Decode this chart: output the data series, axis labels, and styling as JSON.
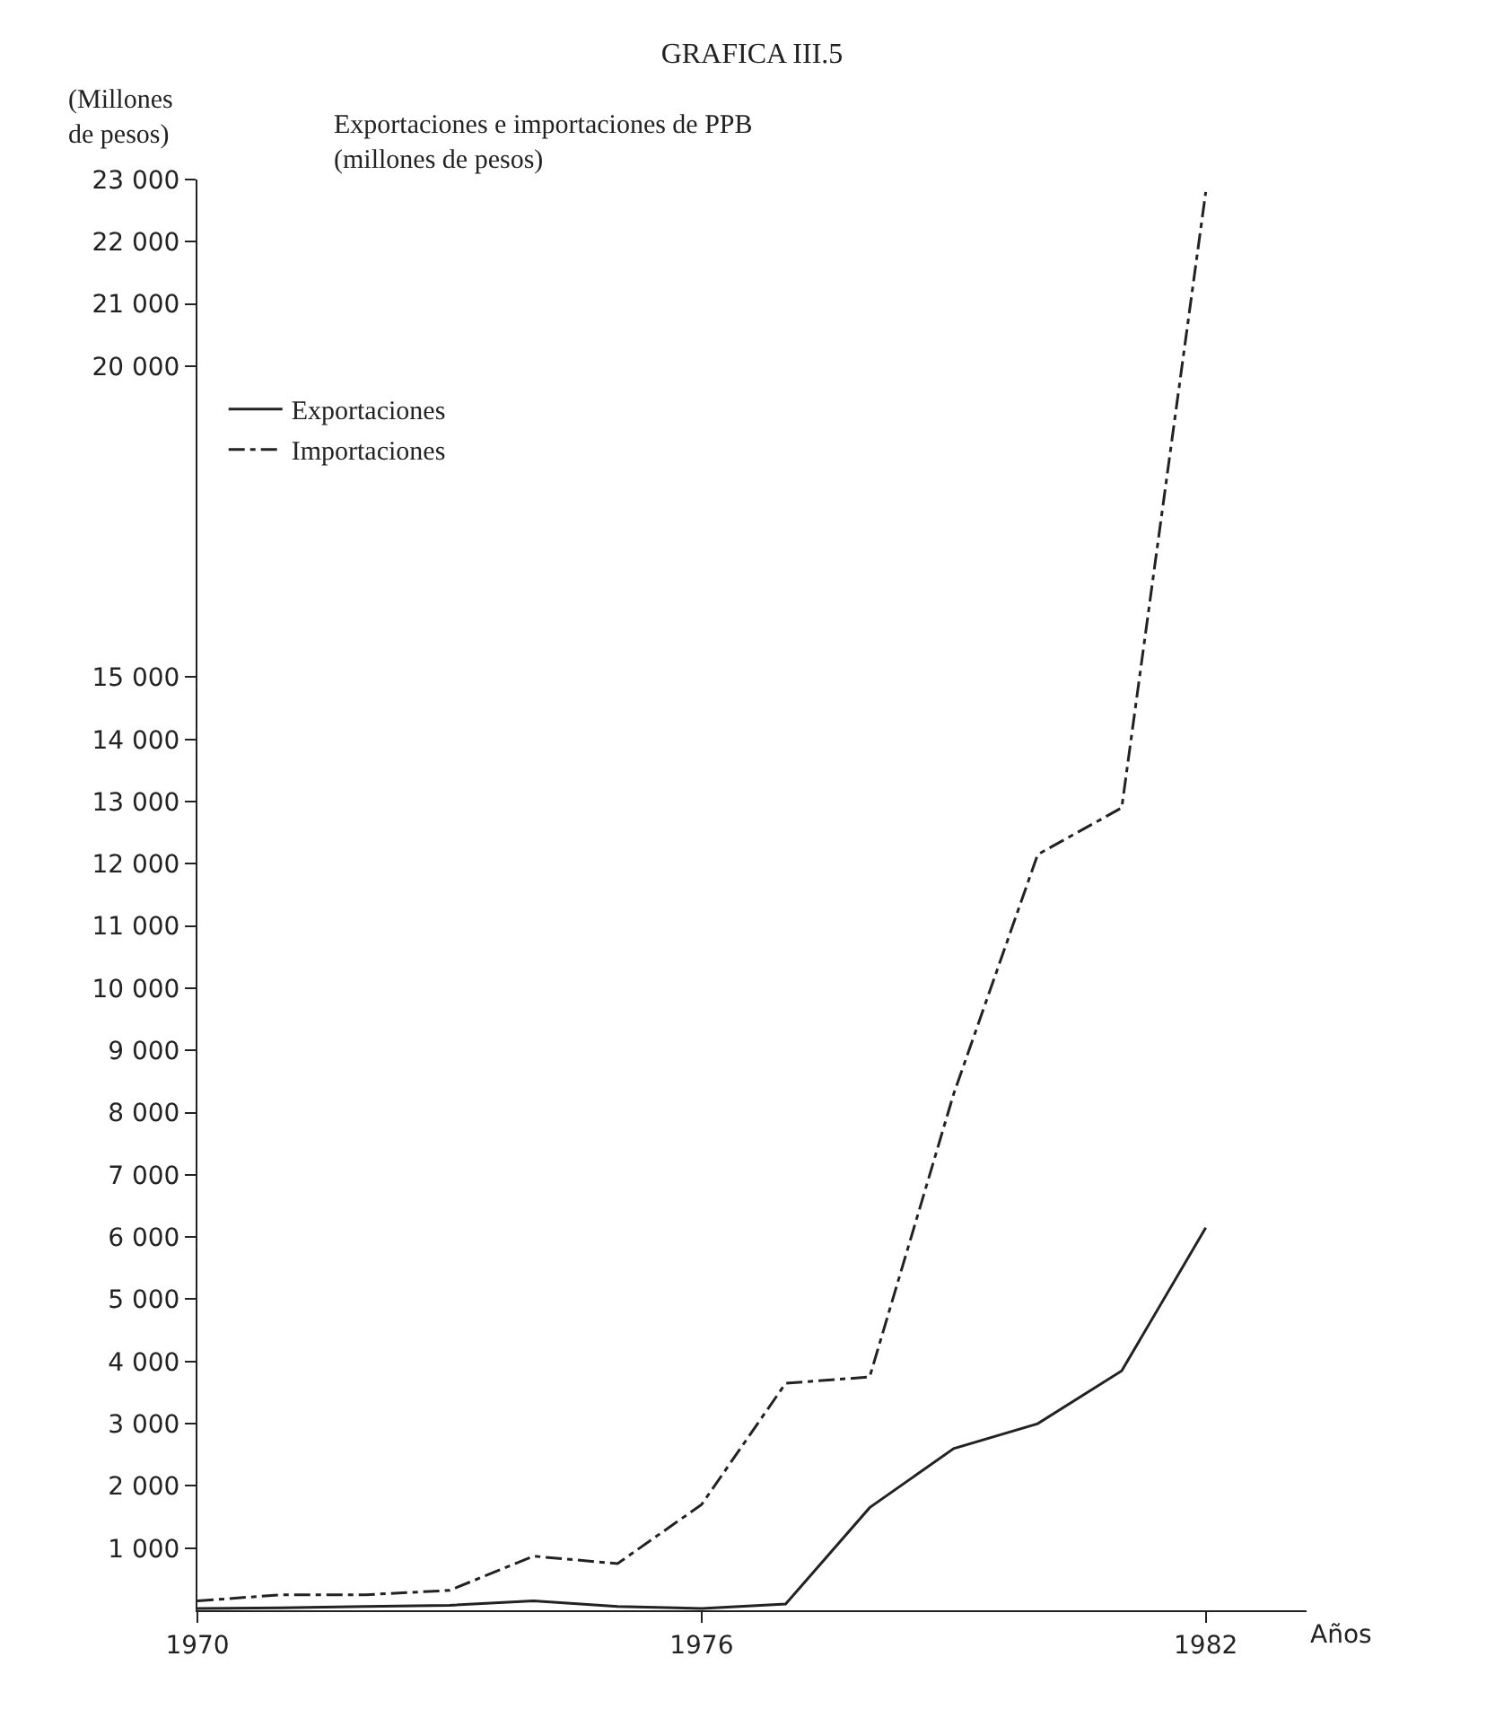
{
  "chart_data": {
    "type": "line",
    "title": "GRAFICA III.5",
    "subtitle": "Exportaciones e importaciones de PPB\n(millones de pesos)",
    "ylabel": "(Millones\nde pesos)",
    "xlabel": "Años",
    "x": [
      1970,
      1971,
      1972,
      1973,
      1974,
      1975,
      1976,
      1977,
      1978,
      1979,
      1980,
      1981,
      1982
    ],
    "series": [
      {
        "name": "Exportaciones",
        "color": "#222222",
        "line_style": "solid",
        "values": [
          30,
          40,
          60,
          80,
          150,
          60,
          30,
          100,
          1650,
          2600,
          3000,
          3850,
          6150
        ]
      },
      {
        "name": "Importaciones",
        "color": "#222222",
        "line_style": "dashdot",
        "values": [
          150,
          250,
          250,
          320,
          870,
          750,
          1700,
          3650,
          3750,
          8300,
          12150,
          12900,
          22800
        ]
      }
    ],
    "xlim": [
      1970,
      1983.2
    ],
    "xticks": [
      1970,
      1976,
      1982
    ],
    "ylim": [
      0,
      23000
    ],
    "yticks": [
      {
        "value": 1000,
        "label": "1 000"
      },
      {
        "value": 2000,
        "label": "2 000"
      },
      {
        "value": 3000,
        "label": "3 000"
      },
      {
        "value": 4000,
        "label": "4 000"
      },
      {
        "value": 5000,
        "label": "5 000"
      },
      {
        "value": 6000,
        "label": "6 000"
      },
      {
        "value": 7000,
        "label": "7 000"
      },
      {
        "value": 8000,
        "label": "8 000"
      },
      {
        "value": 9000,
        "label": "9 000"
      },
      {
        "value": 10000,
        "label": "10 000"
      },
      {
        "value": 11000,
        "label": "11 000"
      },
      {
        "value": 12000,
        "label": "12 000"
      },
      {
        "value": 13000,
        "label": "13 000"
      },
      {
        "value": 14000,
        "label": "14 000"
      },
      {
        "value": 15000,
        "label": "15 000"
      },
      {
        "value": 20000,
        "label": "20 000"
      },
      {
        "value": 21000,
        "label": "21 000"
      },
      {
        "value": 22000,
        "label": "22 000"
      },
      {
        "value": 23000,
        "label": "23 000"
      }
    ],
    "grid": false,
    "legend": "top left",
    "marker": "none"
  }
}
